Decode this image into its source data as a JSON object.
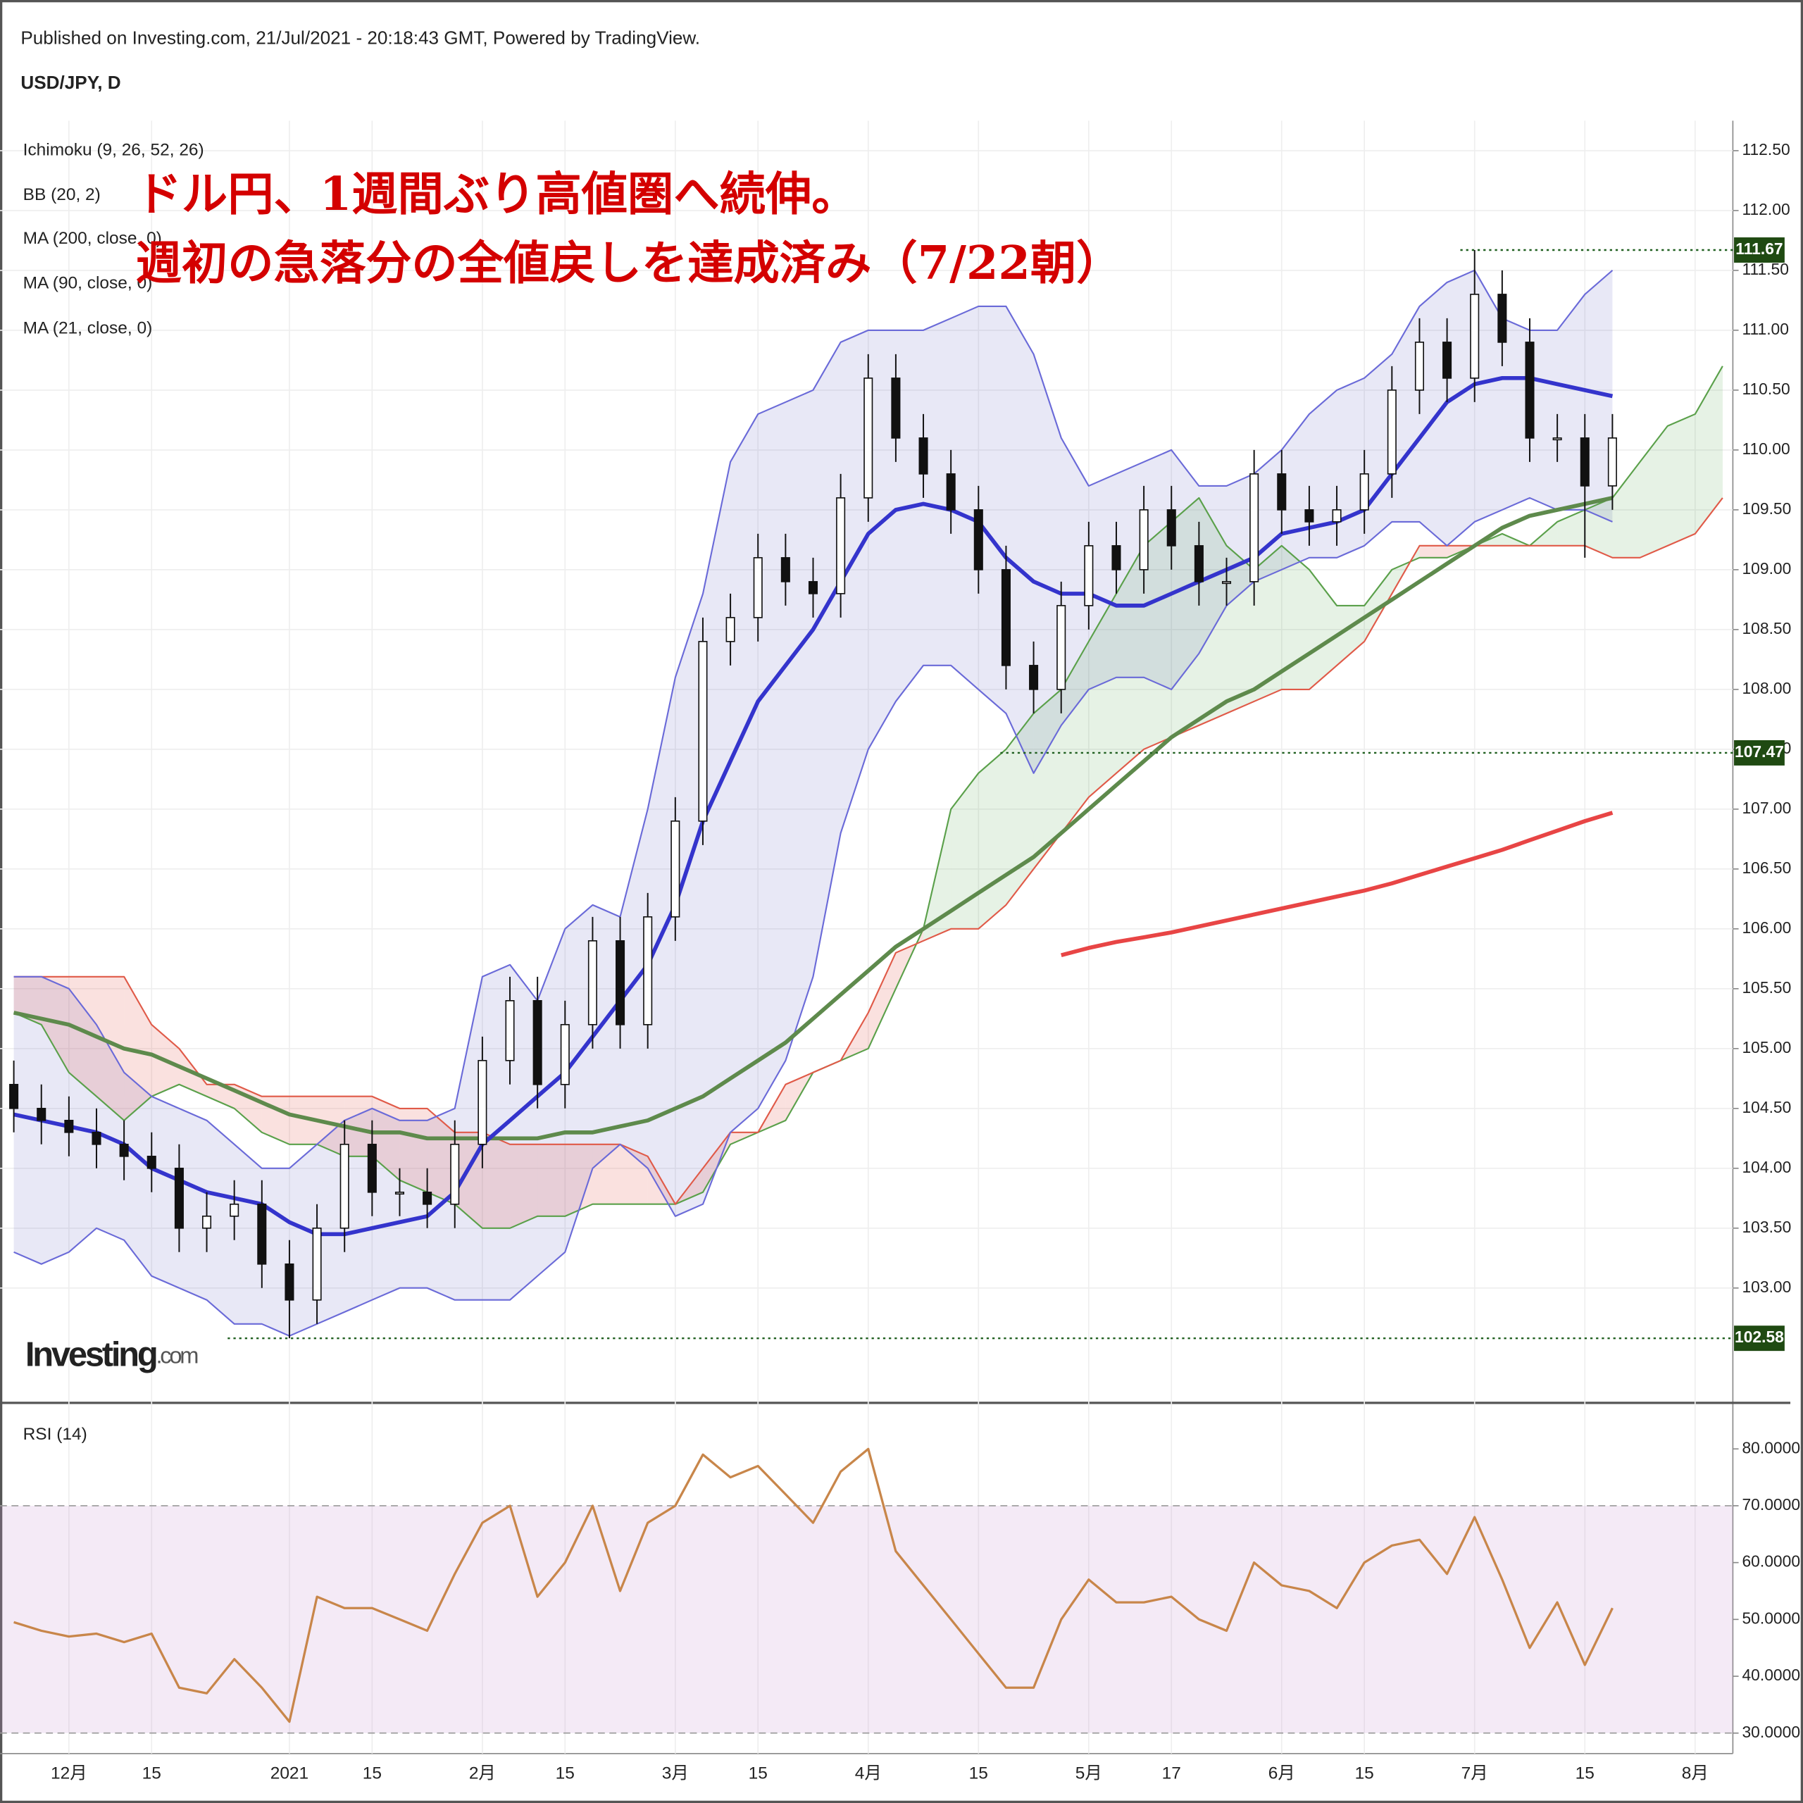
{
  "header": {
    "published": "Published on Investing.com, 21/Jul/2021 - 20:18:43 GMT, Powered by TradingView.",
    "symbol": "USD/JPY, D"
  },
  "logo": {
    "main": "Investing",
    "suffix": ".com"
  },
  "annotation": [
    "ドル円、1週間ぶり高値圏へ続伸。",
    "週初の急落分の全値戻しを達成済み（7/22朝）"
  ],
  "chart_data": {
    "type": "candlestick",
    "categories": [
      null,
      null,
      "12月",
      null,
      null,
      "15",
      null,
      null,
      null,
      null,
      "2021",
      null,
      null,
      "15",
      null,
      null,
      null,
      "2月",
      null,
      null,
      "15",
      null,
      null,
      null,
      "3月",
      null,
      null,
      "15",
      null,
      null,
      null,
      "4月",
      null,
      null,
      null,
      "15",
      null,
      null,
      null,
      "5月",
      null,
      null,
      "17",
      null,
      null,
      null,
      "6月",
      null,
      null,
      "15",
      null,
      null,
      null,
      "7月",
      null,
      null,
      null,
      "15",
      null,
      null,
      null,
      "8月",
      null
    ],
    "open": [
      104.7,
      104.5,
      104.4,
      104.3,
      104.2,
      104.1,
      104.0,
      103.5,
      103.6,
      103.7,
      103.2,
      102.9,
      103.5,
      104.2,
      103.8,
      103.8,
      103.7,
      104.2,
      104.9,
      105.4,
      104.7,
      105.2,
      105.9,
      105.2,
      106.1,
      106.9,
      108.4,
      108.6,
      109.1,
      108.9,
      108.8,
      109.6,
      110.6,
      110.1,
      109.8,
      109.5,
      109.0,
      108.2,
      108.0,
      108.7,
      109.2,
      109.0,
      109.5,
      109.2,
      108.9,
      108.9,
      109.8,
      109.5,
      109.4,
      109.5,
      109.8,
      110.5,
      110.9,
      110.6,
      111.3,
      110.9,
      110.1,
      110.1,
      109.7,
      null,
      null,
      null,
      null
    ],
    "high": [
      104.9,
      104.7,
      104.6,
      104.5,
      104.4,
      104.3,
      104.2,
      103.8,
      103.9,
      103.9,
      103.4,
      103.7,
      104.4,
      104.4,
      104.0,
      104.0,
      104.4,
      105.1,
      105.6,
      105.6,
      105.4,
      106.1,
      106.1,
      106.3,
      107.1,
      108.6,
      108.8,
      109.3,
      109.3,
      109.1,
      109.8,
      110.8,
      110.8,
      110.3,
      110.0,
      109.7,
      109.2,
      108.4,
      108.9,
      109.4,
      109.4,
      109.7,
      109.7,
      109.4,
      109.1,
      110.0,
      110.0,
      109.7,
      109.7,
      110.0,
      110.7,
      111.1,
      111.1,
      111.67,
      111.5,
      111.1,
      110.3,
      110.3,
      110.3,
      null,
      null,
      null,
      null
    ],
    "low": [
      104.3,
      104.2,
      104.1,
      104.0,
      103.9,
      103.8,
      103.3,
      103.3,
      103.4,
      103.0,
      102.58,
      102.7,
      103.3,
      103.6,
      103.6,
      103.5,
      103.5,
      104.0,
      104.7,
      104.5,
      104.5,
      105.0,
      105.0,
      105.0,
      105.9,
      106.7,
      108.2,
      108.4,
      108.7,
      108.6,
      108.6,
      109.4,
      109.9,
      109.6,
      109.3,
      108.8,
      108.0,
      107.8,
      107.8,
      108.5,
      108.8,
      108.8,
      109.0,
      108.7,
      108.7,
      108.7,
      109.3,
      109.2,
      109.2,
      109.3,
      109.6,
      110.3,
      110.4,
      110.4,
      110.7,
      109.9,
      109.9,
      109.1,
      109.5,
      null,
      null,
      null,
      null
    ],
    "close": [
      104.5,
      104.4,
      104.3,
      104.2,
      104.1,
      104.0,
      103.5,
      103.6,
      103.7,
      103.2,
      102.9,
      103.5,
      104.2,
      103.8,
      103.8,
      103.7,
      104.2,
      104.9,
      105.4,
      104.7,
      105.2,
      105.9,
      105.2,
      106.1,
      106.9,
      108.4,
      108.6,
      109.1,
      108.9,
      108.8,
      109.6,
      110.6,
      110.1,
      109.8,
      109.5,
      109.0,
      108.2,
      108.0,
      108.7,
      109.2,
      109.0,
      109.5,
      109.2,
      108.9,
      108.9,
      109.8,
      109.5,
      109.4,
      109.5,
      109.8,
      110.5,
      110.9,
      110.6,
      111.3,
      110.9,
      110.1,
      110.1,
      109.7,
      110.1,
      null,
      null,
      null,
      null
    ],
    "ichimoku": {
      "name": "Ichimoku (9, 26, 52, 26)",
      "color_a": "#5aa04a",
      "color_b": "#e05a48",
      "span_a": [
        105.3,
        105.2,
        104.8,
        104.6,
        104.4,
        104.6,
        104.7,
        104.6,
        104.5,
        104.3,
        104.2,
        104.2,
        104.1,
        104.1,
        103.9,
        103.8,
        103.7,
        103.5,
        103.5,
        103.6,
        103.6,
        103.7,
        103.7,
        103.7,
        103.7,
        103.8,
        104.2,
        104.3,
        104.4,
        104.8,
        104.9,
        105.0,
        105.5,
        106.0,
        107.0,
        107.3,
        107.5,
        107.8,
        108.0,
        108.4,
        108.8,
        109.2,
        109.4,
        109.6,
        109.2,
        109.0,
        109.2,
        109.0,
        108.7,
        108.7,
        109.0,
        109.1,
        109.1,
        109.2,
        109.3,
        109.2,
        109.4,
        109.5,
        109.6,
        109.9,
        110.2,
        110.3,
        110.7
      ],
      "span_b": [
        105.6,
        105.6,
        105.6,
        105.6,
        105.6,
        105.2,
        105.0,
        104.7,
        104.7,
        104.6,
        104.6,
        104.6,
        104.6,
        104.6,
        104.5,
        104.5,
        104.3,
        104.3,
        104.2,
        104.2,
        104.2,
        104.2,
        104.2,
        104.1,
        103.7,
        104.0,
        104.3,
        104.3,
        104.7,
        104.8,
        104.9,
        105.3,
        105.8,
        105.9,
        106.0,
        106.0,
        106.2,
        106.5,
        106.8,
        107.1,
        107.3,
        107.5,
        107.6,
        107.7,
        107.8,
        107.9,
        108.0,
        108.0,
        108.2,
        108.4,
        108.8,
        109.2,
        109.2,
        109.2,
        109.2,
        109.2,
        109.2,
        109.2,
        109.1,
        109.1,
        109.2,
        109.3,
        109.6
      ]
    },
    "bb": {
      "name": "BB (20, 2)",
      "color": "#6a6ad8",
      "upper": [
        105.6,
        105.6,
        105.5,
        105.2,
        104.8,
        104.6,
        104.5,
        104.4,
        104.2,
        104.0,
        104.0,
        104.2,
        104.4,
        104.5,
        104.4,
        104.4,
        104.5,
        105.6,
        105.7,
        105.4,
        106.0,
        106.2,
        106.1,
        107.0,
        108.1,
        108.8,
        109.9,
        110.3,
        110.4,
        110.5,
        110.9,
        111.0,
        111.0,
        111.0,
        111.1,
        111.2,
        111.2,
        110.8,
        110.1,
        109.7,
        109.8,
        109.9,
        110.0,
        109.7,
        109.7,
        109.8,
        110.0,
        110.3,
        110.5,
        110.6,
        110.8,
        111.2,
        111.4,
        111.5,
        111.1,
        111.0,
        111.0,
        111.3,
        111.5,
        null,
        null,
        null,
        null
      ],
      "lower": [
        103.3,
        103.2,
        103.3,
        103.5,
        103.4,
        103.1,
        103.0,
        102.9,
        102.7,
        102.7,
        102.6,
        102.7,
        102.8,
        102.9,
        103.0,
        103.0,
        102.9,
        102.9,
        102.9,
        103.1,
        103.3,
        104.0,
        104.2,
        104.0,
        103.6,
        103.7,
        104.3,
        104.5,
        104.9,
        105.6,
        106.8,
        107.5,
        107.9,
        108.2,
        108.2,
        108.0,
        107.8,
        107.3,
        107.7,
        108.0,
        108.1,
        108.1,
        108.0,
        108.3,
        108.7,
        108.9,
        109.0,
        109.1,
        109.1,
        109.2,
        109.4,
        109.4,
        109.2,
        109.4,
        109.5,
        109.6,
        109.5,
        109.5,
        109.4,
        null,
        null,
        null,
        null
      ]
    },
    "series": [
      {
        "name": "MA (200, close, 0)",
        "color": "#e84545",
        "values": [
          null,
          null,
          null,
          null,
          null,
          null,
          null,
          null,
          null,
          null,
          null,
          null,
          null,
          null,
          null,
          null,
          null,
          null,
          null,
          null,
          null,
          null,
          null,
          null,
          null,
          null,
          null,
          null,
          null,
          null,
          null,
          null,
          null,
          null,
          null,
          null,
          null,
          null,
          105.78,
          105.84,
          105.89,
          105.93,
          105.97,
          106.02,
          106.07,
          106.12,
          106.17,
          106.22,
          106.27,
          106.32,
          106.38,
          106.45,
          106.52,
          106.59,
          106.66,
          106.74,
          106.82,
          106.9,
          106.97,
          null,
          null,
          null,
          null
        ]
      },
      {
        "name": "MA (90, close, 0)",
        "color": "#5e8a4c",
        "values": [
          105.3,
          105.25,
          105.2,
          105.1,
          105.0,
          104.95,
          104.85,
          104.75,
          104.65,
          104.55,
          104.45,
          104.4,
          104.35,
          104.3,
          104.3,
          104.25,
          104.25,
          104.25,
          104.25,
          104.25,
          104.3,
          104.3,
          104.35,
          104.4,
          104.5,
          104.6,
          104.75,
          104.9,
          105.05,
          105.25,
          105.45,
          105.65,
          105.85,
          106.0,
          106.15,
          106.3,
          106.45,
          106.6,
          106.8,
          107.0,
          107.2,
          107.4,
          107.6,
          107.75,
          107.9,
          108.0,
          108.15,
          108.3,
          108.45,
          108.6,
          108.75,
          108.9,
          109.05,
          109.2,
          109.35,
          109.45,
          109.5,
          109.55,
          109.6,
          null,
          null,
          null,
          null
        ]
      },
      {
        "name": "MA (21, close, 0)",
        "color": "#3434cc",
        "values": [
          104.45,
          104.4,
          104.35,
          104.3,
          104.2,
          104.0,
          103.9,
          103.8,
          103.75,
          103.7,
          103.55,
          103.45,
          103.45,
          103.5,
          103.55,
          103.6,
          103.8,
          104.2,
          104.4,
          104.6,
          104.8,
          105.1,
          105.4,
          105.7,
          106.2,
          106.9,
          107.4,
          107.9,
          108.2,
          108.5,
          108.9,
          109.3,
          109.5,
          109.55,
          109.5,
          109.4,
          109.1,
          108.9,
          108.8,
          108.8,
          108.7,
          108.7,
          108.8,
          108.9,
          109.0,
          109.1,
          109.3,
          109.35,
          109.4,
          109.5,
          109.8,
          110.1,
          110.4,
          110.55,
          110.6,
          110.6,
          110.55,
          110.5,
          110.45,
          null,
          null,
          null,
          null
        ]
      }
    ],
    "levels": [
      111.67,
      107.47,
      102.58
    ],
    "ylim": [
      102.06,
      112.75
    ],
    "yticks": [
      {
        "value": 103,
        "label": "103.00"
      },
      {
        "value": 103.5,
        "label": "103.50"
      },
      {
        "value": 104,
        "label": "104.00"
      },
      {
        "value": 104.5,
        "label": "104.50"
      },
      {
        "value": 105,
        "label": "105.00"
      },
      {
        "value": 105.5,
        "label": "105.50"
      },
      {
        "value": 106,
        "label": "106.00"
      },
      {
        "value": 106.5,
        "label": "106.50"
      },
      {
        "value": 107,
        "label": "107.00"
      },
      {
        "value": 107.5,
        "label": "107.50"
      },
      {
        "value": 108,
        "label": "108.00"
      },
      {
        "value": 108.5,
        "label": "108.50"
      },
      {
        "value": 109,
        "label": "109.00"
      },
      {
        "value": 109.5,
        "label": "109.50"
      },
      {
        "value": 110,
        "label": "110.00"
      },
      {
        "value": 110.5,
        "label": "110.50"
      },
      {
        "value": 111,
        "label": "111.00"
      },
      {
        "value": 111.5,
        "label": "111.50"
      },
      {
        "value": 112,
        "label": "112.00"
      },
      {
        "value": 112.5,
        "label": "112.50"
      }
    ],
    "grid": true,
    "rsi": {
      "name": "RSI (14)",
      "color": "#c8864a",
      "bands": [
        30,
        70
      ],
      "ylim": [
        26.4,
        87.7
      ],
      "yticks": [
        {
          "value": 30,
          "label": "30.0000"
        },
        {
          "value": 40,
          "label": "40.0000"
        },
        {
          "value": 50,
          "label": "50.0000"
        },
        {
          "value": 60,
          "label": "60.0000"
        },
        {
          "value": 70,
          "label": "70.0000"
        },
        {
          "value": 80,
          "label": "80.0000"
        }
      ],
      "values": [
        49.5,
        48,
        47,
        47.5,
        46,
        47.5,
        38,
        37,
        43,
        38,
        32,
        54,
        52,
        52,
        50,
        48,
        58,
        67,
        70,
        54,
        60,
        70,
        55,
        67,
        70,
        79,
        75,
        77,
        72,
        67,
        76,
        80,
        62,
        56,
        50,
        44,
        38,
        38,
        50,
        57,
        53,
        53,
        54,
        50,
        48,
        60,
        56,
        55,
        52,
        60,
        63,
        64,
        58,
        68,
        57,
        45,
        53,
        42,
        52,
        null,
        null,
        null,
        null
      ]
    }
  }
}
